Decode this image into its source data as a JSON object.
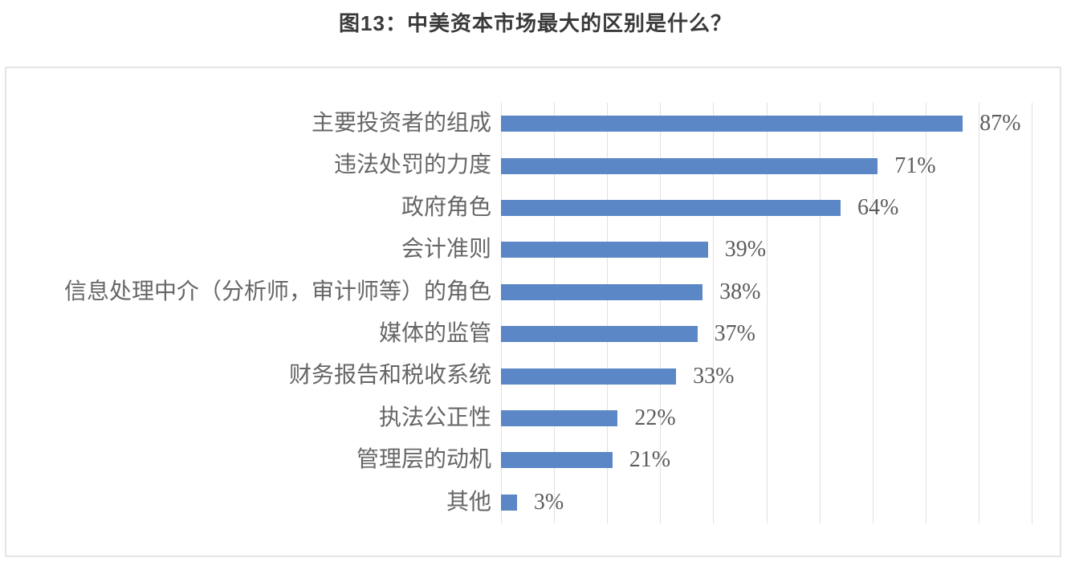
{
  "page": {
    "title": "图13：中美资本市场最大的区别是什么？"
  },
  "colors": {
    "bar": "#5B87C6",
    "gridline": "#E0E0E0",
    "frame_border": "#E4E4E4",
    "title_text": "#3A3A3A",
    "label_text": "#666666",
    "value_text": "#5C5C5C"
  },
  "chart_data": {
    "type": "bar",
    "orientation": "horizontal",
    "title": "图13：中美资本市场最大的区别是什么？",
    "categories": [
      "主要投资者的组成",
      "违法处罚的力度",
      "政府角色",
      "会计准则",
      "信息处理中介（分析师，审计师等）的角色",
      "媒体的监管",
      "财务报告和税收系统",
      "执法公正性",
      "管理层的动机",
      "其他"
    ],
    "values": [
      87,
      71,
      64,
      39,
      38,
      37,
      33,
      22,
      21,
      3
    ],
    "value_labels": [
      "87%",
      "71%",
      "64%",
      "39%",
      "38%",
      "37%",
      "33%",
      "22%",
      "21%",
      "3%"
    ],
    "xlabel": "",
    "ylabel": "",
    "xlim": [
      0,
      100
    ],
    "gridline_interval": 10,
    "grid": true,
    "legend": false,
    "axis_tick_labels_visible": false,
    "bar_color": "#5B87C6"
  }
}
